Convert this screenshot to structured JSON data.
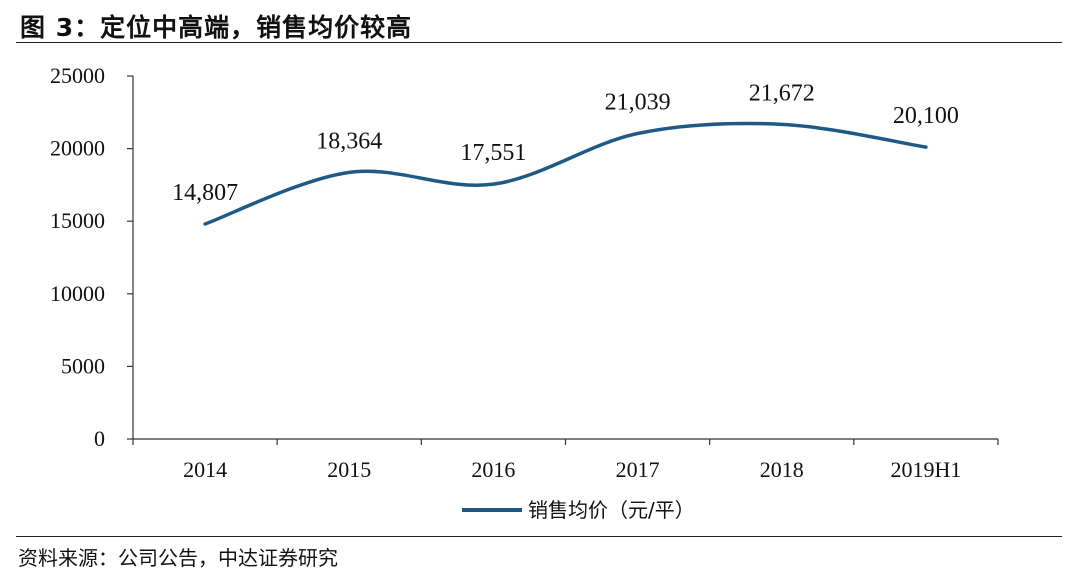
{
  "figure": {
    "title": "图 3：定位中高端，销售均价较高",
    "source": "资料来源：公司公告，中达证券研究"
  },
  "chart_data": {
    "type": "line",
    "categories": [
      "2014",
      "2015",
      "2016",
      "2017",
      "2018",
      "2019H1"
    ],
    "series": [
      {
        "name": "销售均价（元/平）",
        "values": [
          14807,
          18364,
          17551,
          21039,
          21672,
          20100
        ],
        "labels": [
          "14,807",
          "18,364",
          "17,551",
          "21,039",
          "21,672",
          "20,100"
        ],
        "color": "#1f5a85"
      }
    ],
    "ylim": [
      0,
      25000
    ],
    "yticks": [
      "0",
      "5000",
      "10000",
      "15000",
      "20000",
      "25000"
    ],
    "grid": false,
    "smooth": true,
    "legend_position": "bottom"
  }
}
